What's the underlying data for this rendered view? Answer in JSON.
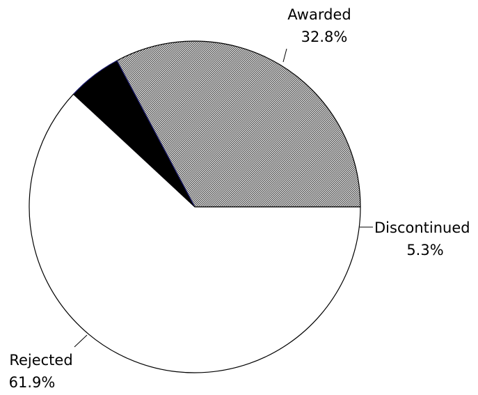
{
  "chart_data": {
    "type": "pie",
    "slices": [
      {
        "label": "Awarded",
        "value": 32.8,
        "value_label": "32.8%",
        "fill": "hatched-gray"
      },
      {
        "label": "Discontinued",
        "value": 5.3,
        "value_label": "5.3%",
        "fill": "#000000"
      },
      {
        "label": "Rejected",
        "value": 61.9,
        "value_label": "61.9%",
        "fill": "#ffffff"
      }
    ],
    "start_angle_deg": 0,
    "direction": "counterclockwise-from-east",
    "colors": {
      "outline": "#000000",
      "discontinued_edge": "#1a1a6e",
      "hatch_fg": "#333333",
      "hatch_bg": "#ffffff"
    }
  }
}
